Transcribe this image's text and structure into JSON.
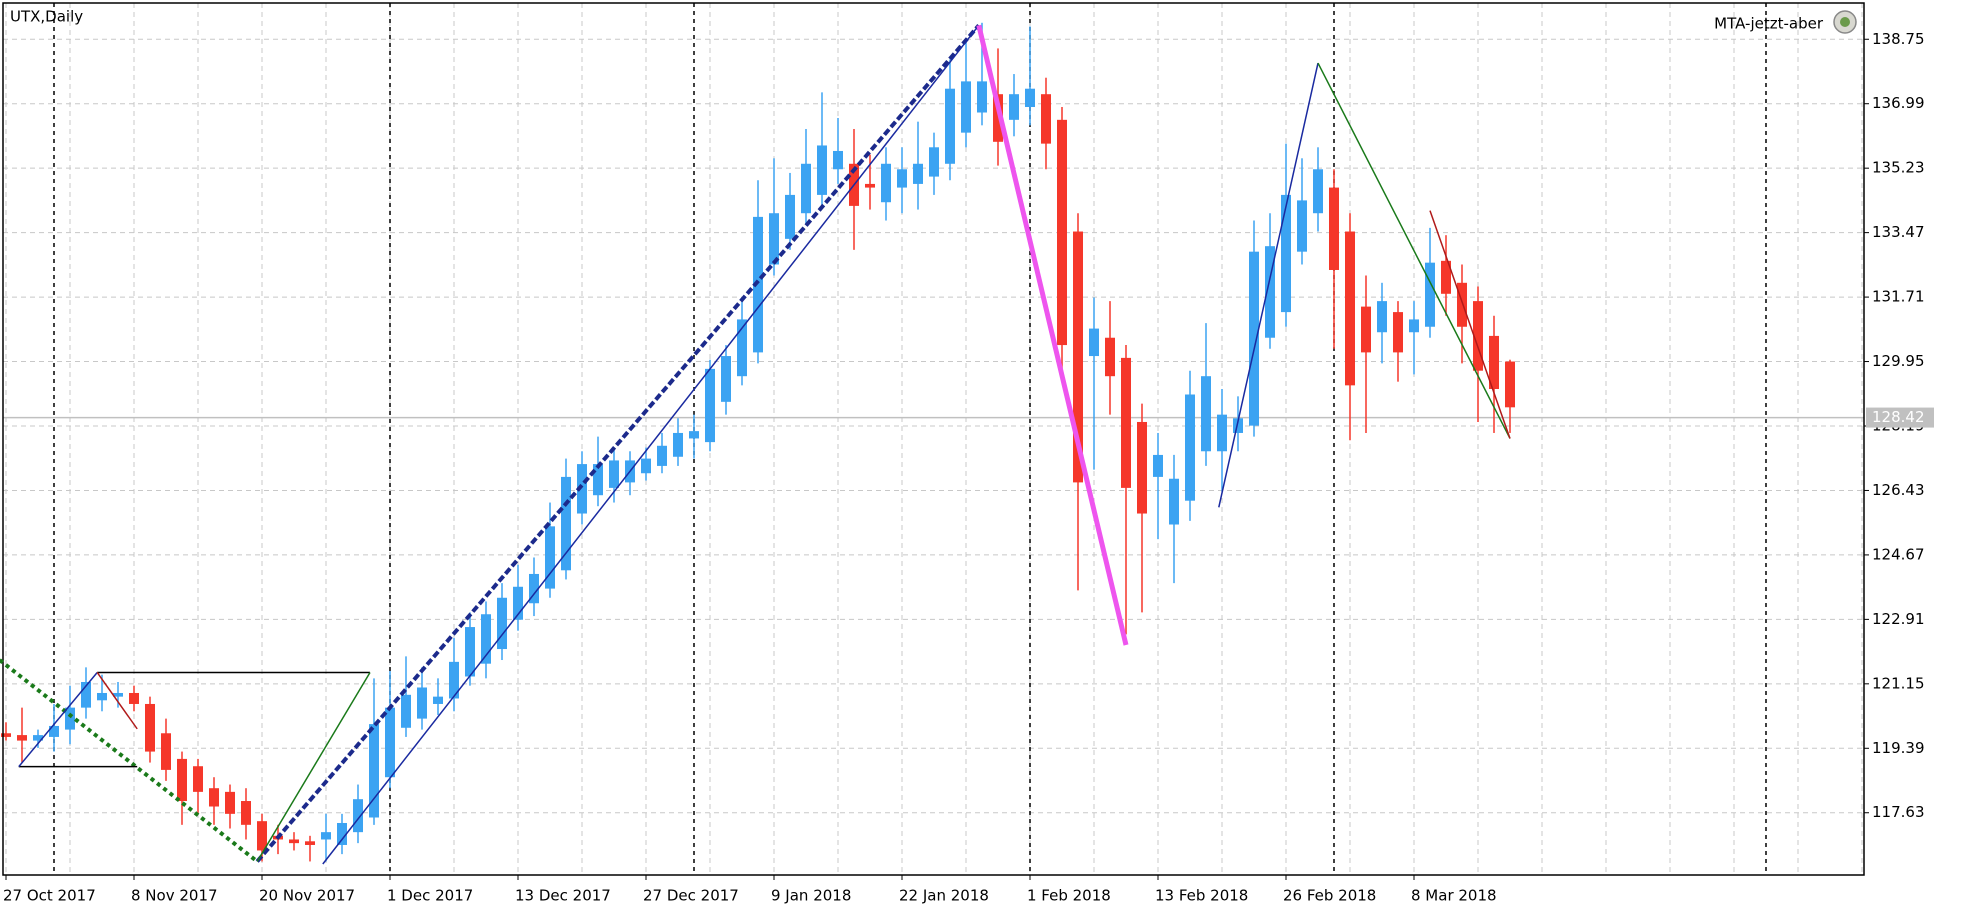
{
  "chart_data": {
    "type": "candlestick",
    "title": "UTX,Daily",
    "indicator_label": "MTA-jetzt-aber",
    "categories": [
      "27 Oct 2017",
      null,
      null,
      null,
      null,
      null,
      null,
      null,
      "8 Nov 2017",
      null,
      null,
      null,
      null,
      null,
      null,
      null,
      "20 Nov 2017",
      null,
      null,
      null,
      null,
      null,
      null,
      null,
      "1 Dec 2017",
      null,
      null,
      null,
      null,
      null,
      null,
      null,
      "13 Dec 2017",
      null,
      null,
      null,
      null,
      null,
      null,
      null,
      "27 Dec 2017",
      null,
      null,
      null,
      null,
      null,
      null,
      null,
      "9 Jan 2018",
      null,
      null,
      null,
      null,
      null,
      null,
      null,
      "22 Jan 2018",
      null,
      null,
      null,
      null,
      null,
      null,
      null,
      "1 Feb 2018",
      null,
      null,
      null,
      null,
      null,
      null,
      null,
      "13 Feb 2018",
      null,
      null,
      null,
      null,
      null,
      null,
      null,
      "26 Feb 2018",
      null,
      null,
      null,
      null,
      null,
      null,
      null,
      "8 Mar 2018",
      null,
      null,
      null,
      null,
      null,
      null
    ],
    "open": [
      119.8,
      119.75,
      119.6,
      119.7,
      119.9,
      120.5,
      120.7,
      120.8,
      120.9,
      120.6,
      119.8,
      119.1,
      118.9,
      118.3,
      118.2,
      117.95,
      117.4,
      117.0,
      116.9,
      116.85,
      116.9,
      116.75,
      117.1,
      117.5,
      118.6,
      119.95,
      120.2,
      120.6,
      120.75,
      121.35,
      121.7,
      122.1,
      122.9,
      123.35,
      123.75,
      124.25,
      125.8,
      126.3,
      126.5,
      126.65,
      126.9,
      127.1,
      127.35,
      127.85,
      127.75,
      128.85,
      129.55,
      130.2,
      132.6,
      133.3,
      134.0,
      134.5,
      135.2,
      135.35,
      134.8,
      134.3,
      134.7,
      134.8,
      135.0,
      135.35,
      136.2,
      136.75,
      137.25,
      136.55,
      136.9,
      137.25,
      136.55,
      133.5,
      130.1,
      130.6,
      130.05,
      128.3,
      126.8,
      125.5,
      126.15,
      127.5,
      127.5,
      128.0,
      128.2,
      130.6,
      131.3,
      132.95,
      134.0,
      134.7,
      133.5,
      131.45,
      130.75,
      131.3,
      130.75,
      130.9,
      132.7,
      132.1,
      131.6,
      130.65,
      129.95
    ],
    "high": [
      120.1,
      120.5,
      119.9,
      120.6,
      121.1,
      121.6,
      121.4,
      121.2,
      121.1,
      120.8,
      120.2,
      119.3,
      119.1,
      118.6,
      118.4,
      118.3,
      117.6,
      117.3,
      117.1,
      117.0,
      117.6,
      117.6,
      118.4,
      121.3,
      121.5,
      121.9,
      121.6,
      121.3,
      122.4,
      123.1,
      123.4,
      123.9,
      124.4,
      124.6,
      126.1,
      127.3,
      127.5,
      127.9,
      127.6,
      127.5,
      127.6,
      128.0,
      128.4,
      128.5,
      130.0,
      130.4,
      131.7,
      134.9,
      135.5,
      135.1,
      136.3,
      137.3,
      136.6,
      136.3,
      135.6,
      135.8,
      135.8,
      136.5,
      136.2,
      138.2,
      138.75,
      139.2,
      138.5,
      137.8,
      139.1,
      137.7,
      136.9,
      134.0,
      131.7,
      131.6,
      130.4,
      128.8,
      128.0,
      127.4,
      129.7,
      131.0,
      129.2,
      129.0,
      133.8,
      134.0,
      135.9,
      135.5,
      135.8,
      135.2,
      134.0,
      132.3,
      132.1,
      131.6,
      131.6,
      133.6,
      133.4,
      132.6,
      132.0,
      131.2,
      130.0
    ],
    "low": [
      119.6,
      119.0,
      119.4,
      119.3,
      119.5,
      120.2,
      120.4,
      120.5,
      120.4,
      119.0,
      118.5,
      117.3,
      117.6,
      117.3,
      117.2,
      116.9,
      116.3,
      116.5,
      116.6,
      116.3,
      116.3,
      116.5,
      116.8,
      117.3,
      118.3,
      119.7,
      119.9,
      120.3,
      120.4,
      121.1,
      121.3,
      121.8,
      122.6,
      123.0,
      123.5,
      124.0,
      125.5,
      126.0,
      126.1,
      126.3,
      126.7,
      126.9,
      127.1,
      127.3,
      127.5,
      128.5,
      129.3,
      129.9,
      132.3,
      133.0,
      133.7,
      134.2,
      134.8,
      133.0,
      134.1,
      133.8,
      134.0,
      134.1,
      134.5,
      134.9,
      135.8,
      136.4,
      135.3,
      136.1,
      136.4,
      135.2,
      129.5,
      123.7,
      127.0,
      128.5,
      122.5,
      123.1,
      125.1,
      123.9,
      125.6,
      127.1,
      126.4,
      127.5,
      127.9,
      130.3,
      130.9,
      132.6,
      133.5,
      130.3,
      127.8,
      128.0,
      129.9,
      129.4,
      129.6,
      130.6,
      131.2,
      129.9,
      128.3,
      128.0,
      128.0
    ],
    "close": [
      119.7,
      119.6,
      119.75,
      120.0,
      120.5,
      121.2,
      120.9,
      120.9,
      120.6,
      119.3,
      118.8,
      117.95,
      118.2,
      117.8,
      117.6,
      117.3,
      116.6,
      116.9,
      116.8,
      116.75,
      117.1,
      117.35,
      118.0,
      120.05,
      120.5,
      120.85,
      121.05,
      120.8,
      121.75,
      122.7,
      123.05,
      123.5,
      123.8,
      124.15,
      125.45,
      126.8,
      127.15,
      127.15,
      127.25,
      127.25,
      127.3,
      127.65,
      128.0,
      128.05,
      129.75,
      130.1,
      131.1,
      133.9,
      134.0,
      134.5,
      135.35,
      135.85,
      135.7,
      134.2,
      134.7,
      135.35,
      135.2,
      135.35,
      135.8,
      137.4,
      137.6,
      137.6,
      135.95,
      137.25,
      137.4,
      135.9,
      130.4,
      126.65,
      130.85,
      129.55,
      126.5,
      125.8,
      127.4,
      126.75,
      129.05,
      129.55,
      128.5,
      128.4,
      132.95,
      133.1,
      134.5,
      134.35,
      135.2,
      132.45,
      129.3,
      130.2,
      131.6,
      130.2,
      131.1,
      132.65,
      131.8,
      130.9,
      129.7,
      129.2,
      128.7
    ],
    "up_color": "#3ba3f2",
    "down_color": "#f5372a",
    "ylim": [
      115.93,
      139.74
    ],
    "yticks": [
      117.63,
      119.39,
      121.15,
      122.91,
      124.67,
      126.43,
      128.19,
      129.95,
      131.71,
      133.47,
      135.23,
      136.99,
      138.75
    ],
    "grid": true,
    "current_price": 128.42,
    "period_separators": [
      3,
      24,
      43,
      64,
      83,
      110
    ],
    "overlays": [
      {
        "color": "#1a7a1a",
        "style": "dotted",
        "points": [
          [
            -0.4,
            121.8
          ],
          [
            15.7,
            116.3
          ]
        ]
      },
      {
        "color": "#1c2a8c",
        "style": "dashed",
        "points": [
          [
            15.7,
            116.3
          ],
          [
            60.8,
            139.13
          ]
        ]
      },
      {
        "color": "#1a2aa0",
        "style": "thin",
        "points": [
          [
            19.8,
            116.23
          ],
          [
            60.8,
            139.13
          ]
        ]
      },
      {
        "color": "#ee55ee",
        "style": "thick",
        "points": [
          [
            60.8,
            139.13
          ],
          [
            70,
            122.21
          ]
        ]
      },
      {
        "color": "#000000",
        "style": "thin",
        "points": [
          [
            0.8,
            118.89
          ],
          [
            8.2,
            118.89
          ]
        ]
      },
      {
        "color": "#000000",
        "style": "thin",
        "points": [
          [
            5.7,
            121.46
          ],
          [
            22.75,
            121.46
          ]
        ]
      },
      {
        "color": "#1a2aa0",
        "style": "thin",
        "points": [
          [
            0.8,
            118.89
          ],
          [
            5.7,
            121.46
          ]
        ]
      },
      {
        "color": "#b01a1a",
        "style": "thin",
        "points": [
          [
            5.7,
            121.46
          ],
          [
            8.2,
            119.92
          ]
        ]
      },
      {
        "color": "#1a7a1a",
        "style": "thin",
        "points": [
          [
            15.7,
            116.3
          ],
          [
            22.75,
            121.46
          ]
        ]
      },
      {
        "color": "#1a2aa0",
        "style": "thin",
        "points": [
          [
            75.8,
            125.97
          ],
          [
            82,
            138.1
          ]
        ]
      },
      {
        "color": "#1a7a1a",
        "style": "thin",
        "points": [
          [
            82,
            138.1
          ],
          [
            94,
            127.85
          ]
        ]
      },
      {
        "color": "#b01a1a",
        "style": "thin",
        "points": [
          [
            89,
            134.07
          ],
          [
            94,
            127.85
          ]
        ]
      }
    ]
  }
}
